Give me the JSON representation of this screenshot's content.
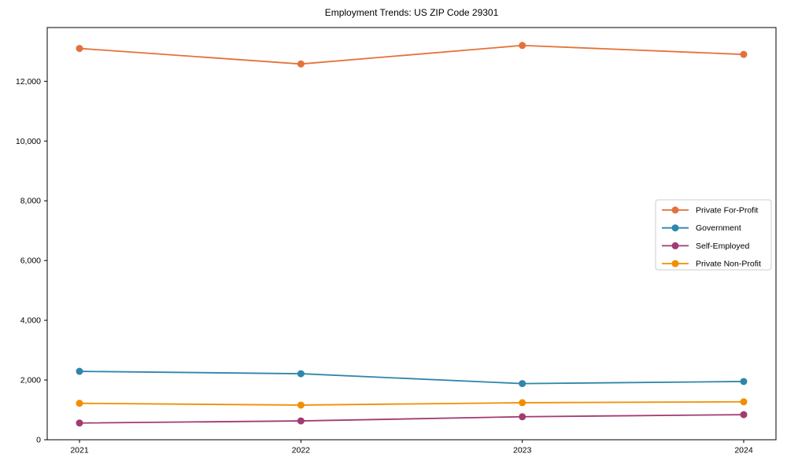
{
  "title": "Employment Trends: US ZIP Code 29301",
  "chart_data": {
    "type": "line",
    "title": "Employment Trends: US ZIP Code 29301",
    "xlabel": "",
    "ylabel": "",
    "categories": [
      "2021",
      "2022",
      "2023",
      "2024"
    ],
    "series": [
      {
        "name": "Private For-Profit",
        "color": "#E5713A",
        "values": [
          13100,
          12580,
          13200,
          12900
        ]
      },
      {
        "name": "Government",
        "color": "#2E86AB",
        "values": [
          2290,
          2210,
          1880,
          1950
        ]
      },
      {
        "name": "Self-Employed",
        "color": "#A23B72",
        "values": [
          560,
          630,
          770,
          840
        ]
      },
      {
        "name": "Private Non-Profit",
        "color": "#F18F01",
        "values": [
          1220,
          1160,
          1240,
          1270
        ]
      }
    ],
    "ylim": [
      0,
      13800
    ],
    "yticks": [
      0,
      2000,
      4000,
      6000,
      8000,
      10000,
      12000
    ],
    "grid": false,
    "legend_position": "center right",
    "marker": "circle",
    "axis_color": "#000000",
    "legend_border_color": "#cccccc",
    "legend_background": "#ffffff"
  }
}
